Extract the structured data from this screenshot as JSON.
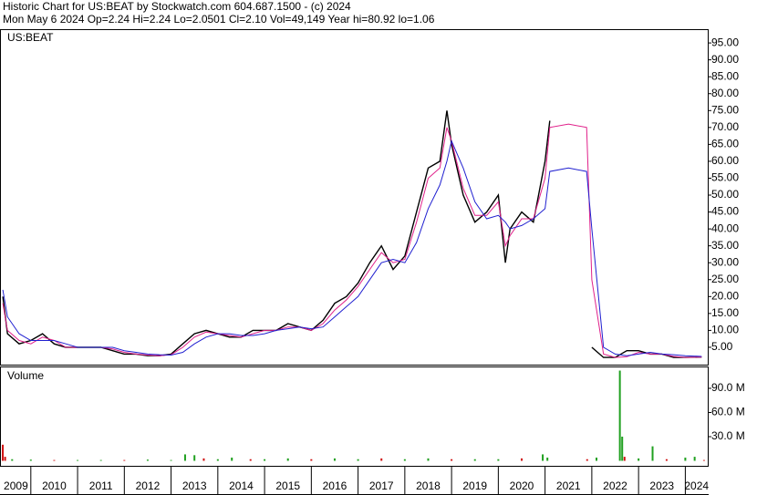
{
  "header": {
    "title": "Historic Chart for US:BEAT by Stockwatch.com 604.687.1500 - (c) 2024",
    "subtitle": "Mon May  6 2024  Op=2.24  Hi=2.24  Lo=2.0501  Cl=2.10  Vol=49,149  Year hi=80.92  lo=1.06"
  },
  "chart_data": [
    {
      "type": "line",
      "label": "US:BEAT",
      "x": [
        2009.4,
        2009.5,
        2009.75,
        2010.0,
        2010.25,
        2010.5,
        2010.75,
        2011.0,
        2011.25,
        2011.5,
        2011.75,
        2012.0,
        2012.25,
        2012.5,
        2012.75,
        2013.0,
        2013.25,
        2013.5,
        2013.75,
        2014.0,
        2014.25,
        2014.5,
        2014.75,
        2015.0,
        2015.25,
        2015.5,
        2015.75,
        2016.0,
        2016.25,
        2016.5,
        2016.75,
        2017.0,
        2017.25,
        2017.5,
        2017.75,
        2018.0,
        2018.25,
        2018.5,
        2018.75,
        2018.9,
        2019.0,
        2019.25,
        2019.5,
        2019.75,
        2020.0,
        2020.15,
        2020.25,
        2020.5,
        2020.75,
        2021.0,
        2021.1,
        2021.5,
        2021.89,
        2022.0,
        2022.25,
        2022.5,
        2022.75,
        2023.0,
        2023.25,
        2023.5,
        2023.75,
        2024.0,
        2024.35
      ],
      "series": [
        {
          "color": "#000000",
          "values": [
            20,
            9,
            6,
            7,
            9,
            6,
            5,
            5,
            5,
            5,
            4,
            3,
            3,
            2.5,
            2.5,
            3,
            6,
            9,
            10,
            9,
            8,
            8,
            10,
            10,
            10,
            12,
            11,
            10,
            13,
            18,
            20,
            24,
            30,
            35,
            28,
            32,
            45,
            58,
            60,
            75,
            65,
            50,
            42,
            45,
            50,
            30,
            40,
            45,
            42,
            60,
            72,
            null,
            null,
            5,
            2,
            2,
            4,
            4,
            3,
            3,
            2,
            2,
            2.1
          ]
        },
        {
          "color": "#e0208a",
          "values": [
            18,
            10,
            7,
            6,
            8,
            7,
            5,
            5,
            5,
            5,
            4.5,
            3.5,
            3,
            2.7,
            2.5,
            2.8,
            5,
            8,
            9.5,
            9,
            8.5,
            8,
            9,
            10,
            10,
            11,
            11,
            10,
            12,
            16,
            19,
            23,
            28,
            33,
            30,
            31,
            42,
            55,
            58,
            70,
            66,
            52,
            44,
            44,
            48,
            35,
            38,
            43,
            43,
            55,
            70,
            71,
            70,
            25,
            3,
            2,
            2.2,
            3.5,
            3,
            3,
            2.3,
            2,
            2.1
          ]
        },
        {
          "color": "#2020d0",
          "values": [
            22,
            14,
            9,
            7,
            7,
            7,
            6,
            5,
            5,
            5,
            5,
            4,
            3.5,
            3,
            2.8,
            2.7,
            3.5,
            6,
            8,
            9,
            9,
            8.5,
            8.5,
            9,
            10,
            10.5,
            11,
            10.5,
            11,
            14,
            17,
            20,
            25,
            30,
            31,
            30,
            36,
            46,
            53,
            60,
            66,
            58,
            48,
            43,
            44,
            42,
            40,
            41,
            43,
            46,
            57,
            58,
            57,
            40,
            5,
            3,
            2.5,
            3,
            3.5,
            3,
            2.8,
            2.5,
            2.3
          ]
        }
      ],
      "xlim": [
        2009.36,
        2024.48
      ],
      "ylim": [
        0,
        98.8
      ],
      "yticks": [
        {
          "value": 5,
          "label": "5.00"
        },
        {
          "value": 10,
          "label": "10.00"
        },
        {
          "value": 15,
          "label": "15.00"
        },
        {
          "value": 20,
          "label": "20.00"
        },
        {
          "value": 25,
          "label": "25.00"
        },
        {
          "value": 30,
          "label": "30.00"
        },
        {
          "value": 35,
          "label": "35.00"
        },
        {
          "value": 40,
          "label": "40.00"
        },
        {
          "value": 45,
          "label": "45.00"
        },
        {
          "value": 50,
          "label": "50.00"
        },
        {
          "value": 55,
          "label": "55.00"
        },
        {
          "value": 60,
          "label": "60.00"
        },
        {
          "value": 65,
          "label": "65.00"
        },
        {
          "value": 70,
          "label": "70.00"
        },
        {
          "value": 75,
          "label": "75.00"
        },
        {
          "value": 80,
          "label": "80.00"
        },
        {
          "value": 85,
          "label": "85.00"
        },
        {
          "value": 90,
          "label": "90.00"
        },
        {
          "value": 95,
          "label": "95.00"
        }
      ]
    },
    {
      "type": "bar",
      "label": "Volume",
      "x": [
        2009.4,
        2009.45,
        2009.6,
        2010.0,
        2010.5,
        2011.0,
        2011.5,
        2012.0,
        2012.5,
        2013.0,
        2013.3,
        2013.5,
        2013.7,
        2014.0,
        2014.3,
        2014.7,
        2015.0,
        2015.5,
        2016.0,
        2016.5,
        2017.0,
        2017.5,
        2018.0,
        2018.5,
        2019.0,
        2019.5,
        2020.0,
        2020.5,
        2020.95,
        2021.05,
        2021.9,
        2022.1,
        2022.6,
        2022.65,
        2022.7,
        2023.0,
        2023.3,
        2023.6,
        2024.0,
        2024.2,
        2024.4
      ],
      "values": [
        20,
        5,
        2,
        1.5,
        1,
        1,
        1,
        1,
        1.5,
        1,
        8,
        7,
        3,
        2,
        4,
        2,
        2,
        3,
        2,
        3,
        2,
        3,
        2,
        3,
        2,
        2,
        2,
        3,
        8,
        4,
        2,
        4,
        112,
        30,
        5,
        3,
        18,
        2,
        4,
        5,
        1
      ],
      "colors": [
        "#d01010",
        "#d01010",
        "#20a020",
        "#20a020",
        "#d01010",
        "#20a020",
        "#20a020",
        "#d01010",
        "#20a020",
        "#20a020",
        "#20a020",
        "#20a020",
        "#d01010",
        "#20a020",
        "#20a020",
        "#d01010",
        "#20a020",
        "#20a020",
        "#d01010",
        "#20a020",
        "#20a020",
        "#d01010",
        "#20a020",
        "#20a020",
        "#d01010",
        "#20a020",
        "#20a020",
        "#d01010",
        "#20a020",
        "#20a020",
        "#d01010",
        "#20a020",
        "#20a020",
        "#20a020",
        "#d01010",
        "#20a020",
        "#20a020",
        "#d01010",
        "#20a020",
        "#20a020",
        "#d01010"
      ],
      "xlim": [
        2009.36,
        2024.48
      ],
      "ylim": [
        0,
        116
      ],
      "yticks": [
        {
          "value": 30,
          "label": "30.0 M"
        },
        {
          "value": 60,
          "label": "60.0 M"
        },
        {
          "value": 90,
          "label": "90.0 M"
        }
      ],
      "xticks": [
        2009,
        2010,
        2011,
        2012,
        2013,
        2014,
        2015,
        2016,
        2017,
        2018,
        2019,
        2020,
        2021,
        2022,
        2023,
        2024
      ]
    }
  ]
}
